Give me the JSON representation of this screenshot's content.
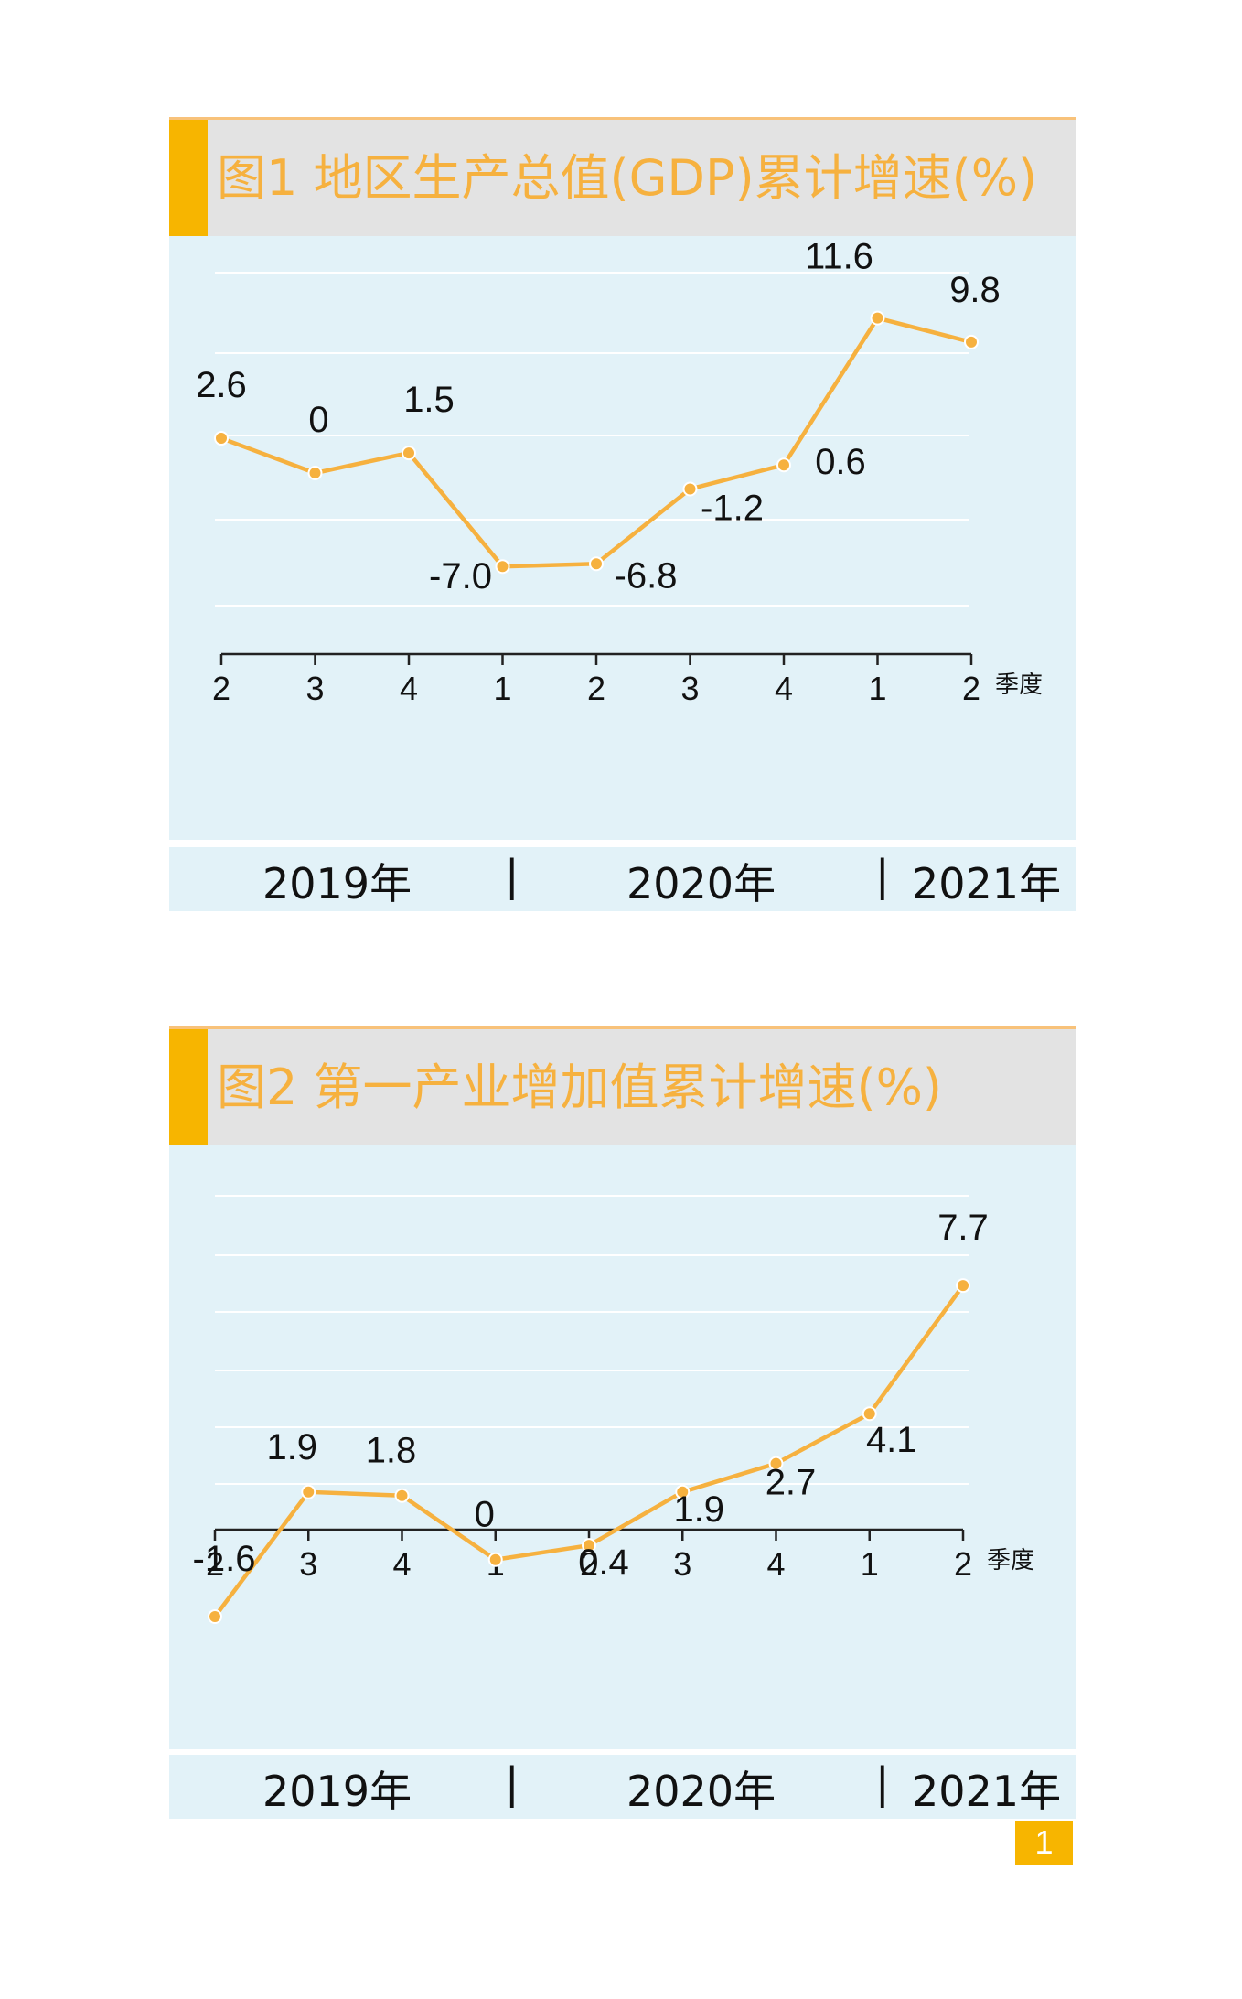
{
  "charts": [
    {
      "title": "图1  地区生产总值(GDP)累计增速(%)",
      "years": [
        "2019年",
        "|",
        "2020年",
        "|",
        "2021年"
      ]
    },
    {
      "title": "图2   第一产业增加值累计增速(%)",
      "years": [
        "2019年",
        "|",
        "2020年",
        "|",
        "2021年"
      ]
    }
  ],
  "page_number": "1",
  "colors": {
    "line": "#f6b13f",
    "accent": "#f7b500",
    "plot_bg": "#e2f2f8",
    "header_bg": "#e3e3e3"
  },
  "chart_data": [
    {
      "type": "line",
      "title": "图1  地区生产总值(GDP)累计增速(%)",
      "xlabel": "季度",
      "ylabel": "",
      "categories": [
        "2",
        "3",
        "4",
        "1",
        "2",
        "3",
        "4",
        "1",
        "2"
      ],
      "year_groups": [
        "2019年",
        "2020年",
        "2021年"
      ],
      "values": [
        2.6,
        0,
        1.5,
        -7.0,
        -6.8,
        -1.2,
        0.6,
        11.6,
        9.8
      ],
      "value_labels": [
        "2.6",
        "0",
        "1.5",
        "-7.0",
        "-6.8",
        "-1.2",
        "0.6",
        "11.6",
        "9.8"
      ],
      "ylim": [
        -10,
        15
      ],
      "grid": true,
      "legend": "none"
    },
    {
      "type": "line",
      "title": "图2   第一产业增加值累计增速(%)",
      "xlabel": "季度",
      "ylabel": "",
      "categories": [
        "2",
        "3",
        "4",
        "1",
        "2",
        "3",
        "4",
        "1",
        "2"
      ],
      "year_groups": [
        "2019年",
        "2020年",
        "2021年"
      ],
      "values": [
        -1.6,
        1.9,
        1.8,
        0,
        0.4,
        1.9,
        2.7,
        4.1,
        7.7
      ],
      "value_labels": [
        "-1.6",
        "1.9",
        "1.8",
        "0",
        "0.4",
        "1.9",
        "2.7",
        "4.1",
        "7.7"
      ],
      "ylim": [
        -1.6,
        8.5
      ],
      "grid": true,
      "legend": "none"
    }
  ]
}
